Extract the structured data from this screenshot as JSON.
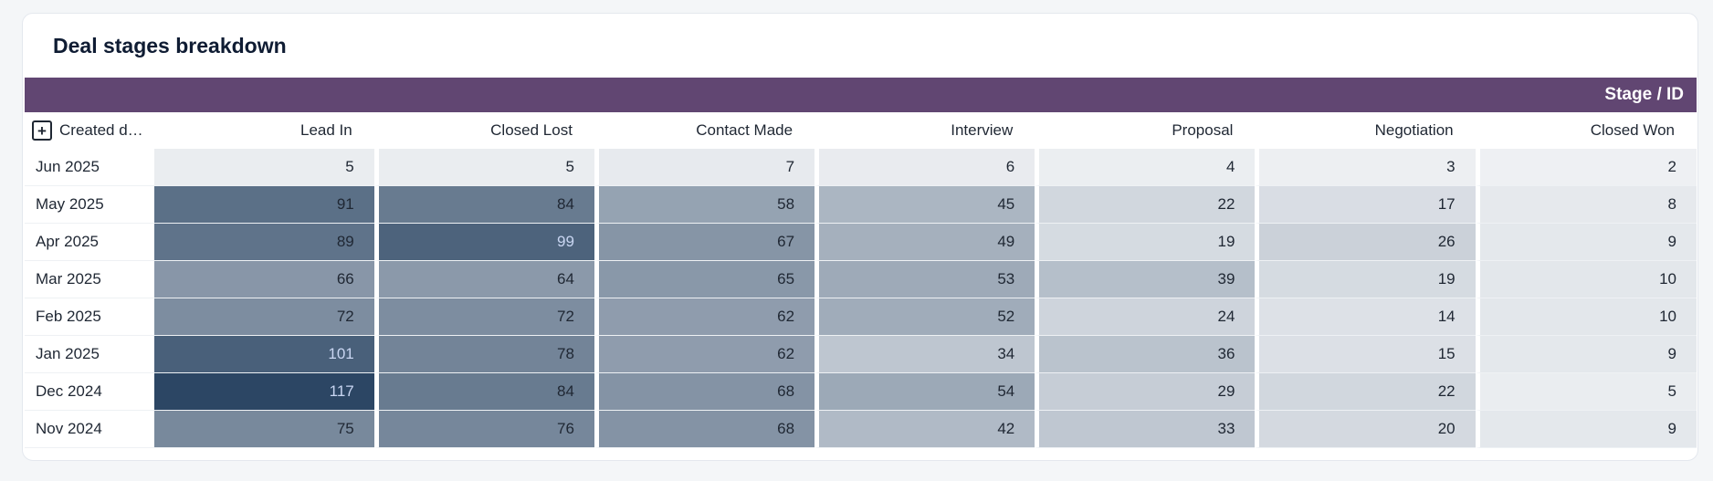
{
  "title": "Deal stages breakdown",
  "band_label": "Stage / ID",
  "row_header": "Created dat…",
  "columns": [
    "Lead In",
    "Closed Lost",
    "Contact Made",
    "Interview",
    "Proposal",
    "Negotiation",
    "Closed Won"
  ],
  "rows": [
    {
      "label": "Jun 2025",
      "values": [
        5,
        5,
        7,
        6,
        4,
        3,
        2
      ]
    },
    {
      "label": "May 2025",
      "values": [
        91,
        84,
        58,
        45,
        22,
        17,
        8
      ]
    },
    {
      "label": "Apr 2025",
      "values": [
        89,
        99,
        67,
        49,
        19,
        26,
        9
      ]
    },
    {
      "label": "Mar 2025",
      "values": [
        66,
        64,
        65,
        53,
        39,
        19,
        10
      ]
    },
    {
      "label": "Feb 2025",
      "values": [
        72,
        72,
        62,
        52,
        24,
        14,
        10
      ]
    },
    {
      "label": "Jan 2025",
      "values": [
        101,
        78,
        62,
        34,
        36,
        15,
        9
      ]
    },
    {
      "label": "Dec 2024",
      "values": [
        117,
        84,
        68,
        54,
        29,
        22,
        5
      ]
    },
    {
      "label": "Nov 2024",
      "values": [
        75,
        76,
        68,
        42,
        33,
        20,
        9
      ]
    }
  ],
  "colors": {
    "band": "#614672",
    "heat_low": "#f0f2f5",
    "heat_high": "#2c4664",
    "text_dark": "#1f2733",
    "text_on_dark": "#c9d6f2"
  },
  "icons": {
    "expand": "plus-square-icon"
  }
}
